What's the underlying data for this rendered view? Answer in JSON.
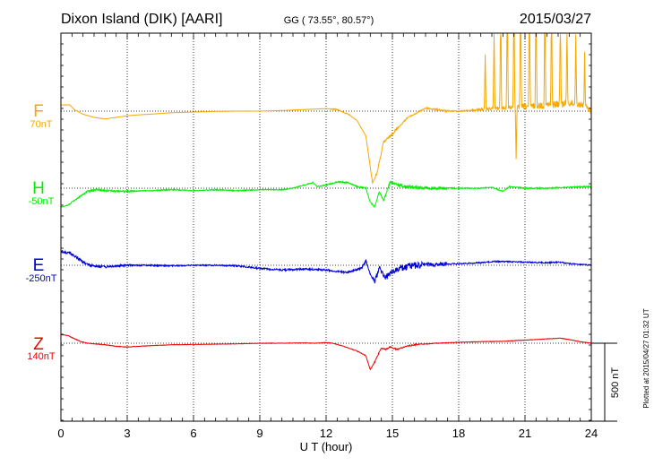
{
  "header": {
    "station": "Dixon Island (DIK)  [AARI]",
    "coords": "GG ( 73.55°,  80.57°)",
    "date": "2015/03/27"
  },
  "plotted_note": "Plotted at 2015/04/27 01:32 UT",
  "scale_bar": {
    "label": "500 nT",
    "value": 500
  },
  "chart_data": {
    "type": "line",
    "title": "Dixon Island (DIK)  [AARI]",
    "xlabel": "U T (hour)",
    "ylabel": "",
    "xlim": [
      0,
      24
    ],
    "x_ticks": [
      "0",
      "3",
      "6",
      "9",
      "12",
      "15",
      "18",
      "21",
      "24"
    ],
    "grid": true,
    "scale_nT_per_bar": 500,
    "series": [
      {
        "name": "F",
        "baseline": "70nT",
        "color": "#f5a800",
        "anchor": [
          [
            0,
            -20
          ],
          [
            0.4,
            -20
          ],
          [
            0.6,
            -5
          ],
          [
            1,
            10
          ],
          [
            1.5,
            20
          ],
          [
            2,
            25
          ],
          [
            2.5,
            20
          ],
          [
            3,
            15
          ],
          [
            3.5,
            12
          ],
          [
            4,
            10
          ],
          [
            5,
            5
          ],
          [
            6,
            3
          ],
          [
            7,
            1
          ],
          [
            8,
            0
          ],
          [
            9,
            0
          ],
          [
            10,
            -2
          ],
          [
            11,
            -5
          ],
          [
            12,
            -8
          ],
          [
            12.5,
            -5
          ],
          [
            13,
            10
          ],
          [
            13.4,
            30
          ],
          [
            13.8,
            80
          ],
          [
            14.1,
            230
          ],
          [
            14.3,
            200
          ],
          [
            14.6,
            100
          ],
          [
            14.9,
            80
          ],
          [
            15.3,
            50
          ],
          [
            15.7,
            20
          ],
          [
            16,
            10
          ],
          [
            16.5,
            -10
          ],
          [
            17,
            -5
          ],
          [
            17.5,
            0
          ],
          [
            18,
            0
          ],
          [
            18.5,
            -2
          ],
          [
            19,
            -5
          ],
          [
            19.5,
            -8
          ],
          [
            20,
            -10
          ],
          [
            21,
            -15
          ],
          [
            22,
            -20
          ],
          [
            23,
            -25
          ],
          [
            23.6,
            -20
          ],
          [
            24,
            0
          ]
        ],
        "noise": [
          0.3,
          0.4,
          0.2,
          0.1,
          0.2,
          0.3,
          0.2,
          0.2,
          0.2,
          0.4,
          0.5,
          1.5,
          0.3,
          4,
          2,
          3,
          2,
          4,
          6,
          10,
          12,
          10
        ],
        "spikes": [
          {
            "x": 19.2,
            "amp": -60
          },
          {
            "x": 19.6,
            "amp": -90
          },
          {
            "x": 19.9,
            "amp": -130
          },
          {
            "x": 20.2,
            "amp": -160
          },
          {
            "x": 20.5,
            "amp": -170
          },
          {
            "x": 20.8,
            "amp": -150
          },
          {
            "x": 21.2,
            "amp": -140
          },
          {
            "x": 21.5,
            "amp": -170
          },
          {
            "x": 21.9,
            "amp": -160
          },
          {
            "x": 22.2,
            "amp": -130
          },
          {
            "x": 22.6,
            "amp": -110
          },
          {
            "x": 22.9,
            "amp": -90
          },
          {
            "x": 23.3,
            "amp": -80
          },
          {
            "x": 23.7,
            "amp": -60
          },
          {
            "x": 20.6,
            "amp": 60
          }
        ]
      },
      {
        "name": "H",
        "baseline": "-50nT",
        "color": "#00ee00",
        "anchor": [
          [
            0,
            60
          ],
          [
            0.3,
            55
          ],
          [
            0.6,
            40
          ],
          [
            0.9,
            25
          ],
          [
            1.2,
            10
          ],
          [
            1.6,
            5
          ],
          [
            2,
            8
          ],
          [
            3,
            10
          ],
          [
            4,
            8
          ],
          [
            5,
            5
          ],
          [
            6,
            8
          ],
          [
            7,
            5
          ],
          [
            8,
            8
          ],
          [
            9,
            5
          ],
          [
            10,
            5
          ],
          [
            10.5,
            0
          ],
          [
            11,
            -10
          ],
          [
            11.4,
            -18
          ],
          [
            11.6,
            -5
          ],
          [
            12,
            -10
          ],
          [
            12.5,
            -20
          ],
          [
            13,
            -18
          ],
          [
            13.4,
            -5
          ],
          [
            13.8,
            0
          ],
          [
            14,
            45
          ],
          [
            14.2,
            60
          ],
          [
            14.4,
            10
          ],
          [
            14.6,
            40
          ],
          [
            14.9,
            -20
          ],
          [
            15.3,
            -10
          ],
          [
            15.6,
            -5
          ],
          [
            16,
            -3
          ],
          [
            17,
            0
          ],
          [
            18,
            0
          ],
          [
            19,
            0
          ],
          [
            19.5,
            -3
          ],
          [
            19.8,
            5
          ],
          [
            20,
            10
          ],
          [
            20.3,
            -5
          ],
          [
            21,
            0
          ],
          [
            22,
            0
          ],
          [
            23,
            -3
          ],
          [
            24,
            -5
          ]
        ],
        "noise": [
          2,
          3,
          3,
          1.5,
          2,
          1.5,
          2,
          2,
          1.5,
          1.5,
          1.5,
          2,
          2,
          3,
          6,
          5,
          2,
          1.5,
          1.5,
          2,
          2,
          2
        ]
      },
      {
        "name": "E",
        "baseline": "-250nT",
        "color": "#0000dd",
        "anchor": [
          [
            0,
            -45
          ],
          [
            0.4,
            -40
          ],
          [
            0.8,
            -20
          ],
          [
            1,
            -10
          ],
          [
            1.3,
            0
          ],
          [
            2,
            5
          ],
          [
            3,
            0
          ],
          [
            4,
            0
          ],
          [
            5,
            2
          ],
          [
            6,
            0
          ],
          [
            7,
            0
          ],
          [
            8,
            2
          ],
          [
            9,
            10
          ],
          [
            10,
            15
          ],
          [
            11,
            12
          ],
          [
            12,
            15
          ],
          [
            12.5,
            20
          ],
          [
            13,
            22
          ],
          [
            13.6,
            10
          ],
          [
            13.8,
            -15
          ],
          [
            14,
            30
          ],
          [
            14.2,
            50
          ],
          [
            14.4,
            10
          ],
          [
            14.7,
            40
          ],
          [
            15,
            20
          ],
          [
            15.4,
            10
          ],
          [
            16,
            0
          ],
          [
            17,
            -3
          ],
          [
            18,
            -5
          ],
          [
            19,
            -8
          ],
          [
            19.6,
            -12
          ],
          [
            20,
            -12
          ],
          [
            21,
            -10
          ],
          [
            22,
            -8
          ],
          [
            22.6,
            -10
          ],
          [
            23,
            -5
          ],
          [
            24,
            0
          ]
        ],
        "noise": [
          5,
          4,
          3,
          2.5,
          2.5,
          2,
          2,
          2.5,
          2.5,
          3,
          3,
          3,
          3.5,
          10,
          12,
          6,
          2,
          2,
          2,
          2,
          2,
          2
        ]
      },
      {
        "name": "Z",
        "baseline": "140nT",
        "color": "#ee0000",
        "anchor": [
          [
            0,
            -28
          ],
          [
            0.3,
            -25
          ],
          [
            0.6,
            -15
          ],
          [
            0.9,
            -5
          ],
          [
            1.2,
            0
          ],
          [
            2,
            5
          ],
          [
            2.5,
            10
          ],
          [
            3,
            12
          ],
          [
            4,
            8
          ],
          [
            5,
            5
          ],
          [
            6,
            4
          ],
          [
            7,
            3
          ],
          [
            8,
            2
          ],
          [
            9,
            0
          ],
          [
            10,
            0
          ],
          [
            11,
            -1
          ],
          [
            11.5,
            0
          ],
          [
            12,
            -2
          ],
          [
            12.3,
            0
          ],
          [
            12.8,
            10
          ],
          [
            13.4,
            25
          ],
          [
            13.8,
            40
          ],
          [
            14,
            85
          ],
          [
            14.2,
            60
          ],
          [
            14.5,
            15
          ],
          [
            14.7,
            20
          ],
          [
            14.9,
            12
          ],
          [
            15.2,
            20
          ],
          [
            15.6,
            10
          ],
          [
            16,
            5
          ],
          [
            17,
            0
          ],
          [
            18,
            -3
          ],
          [
            19,
            -5
          ],
          [
            20,
            -6
          ],
          [
            21,
            -10
          ],
          [
            22,
            -14
          ],
          [
            22.6,
            -16
          ],
          [
            23,
            -12
          ],
          [
            23.5,
            -5
          ],
          [
            24,
            0
          ]
        ],
        "noise": [
          1,
          1,
          1,
          0.8,
          0.6,
          0.6,
          0.6,
          0.8,
          0.8,
          0.8,
          0.8,
          0.8,
          1,
          2,
          2,
          1,
          0.8,
          0.8,
          0.8,
          0.8,
          0.8,
          0.8
        ]
      }
    ]
  }
}
